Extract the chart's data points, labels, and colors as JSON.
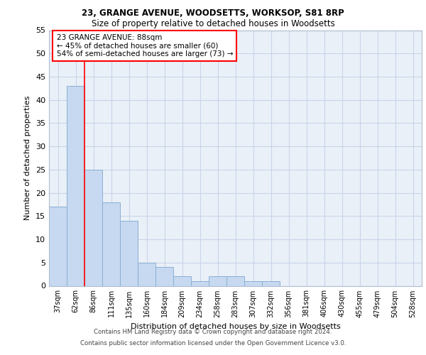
{
  "title1": "23, GRANGE AVENUE, WOODSETTS, WORKSOP, S81 8RP",
  "title2": "Size of property relative to detached houses in Woodsetts",
  "xlabel": "Distribution of detached houses by size in Woodsetts",
  "ylabel": "Number of detached properties",
  "bar_values": [
    17,
    43,
    25,
    18,
    14,
    5,
    4,
    2,
    1,
    2,
    2,
    1,
    1,
    0,
    0,
    0,
    0,
    0,
    0,
    0,
    0
  ],
  "categories": [
    "37sqm",
    "62sqm",
    "86sqm",
    "111sqm",
    "135sqm",
    "160sqm",
    "184sqm",
    "209sqm",
    "234sqm",
    "258sqm",
    "283sqm",
    "307sqm",
    "332sqm",
    "356sqm",
    "381sqm",
    "406sqm",
    "430sqm",
    "455sqm",
    "479sqm",
    "504sqm",
    "528sqm"
  ],
  "bar_color": "#c6d9f0",
  "bar_edge_color": "#8bafd4",
  "red_line_x": 2.0,
  "annotation_text": "23 GRANGE AVENUE: 88sqm\n← 45% of detached houses are smaller (60)\n54% of semi-detached houses are larger (73) →",
  "annotation_box_color": "white",
  "annotation_box_edge_color": "red",
  "ylim": [
    0,
    55
  ],
  "yticks": [
    0,
    5,
    10,
    15,
    20,
    25,
    30,
    35,
    40,
    45,
    50,
    55
  ],
  "footer1": "Contains HM Land Registry data © Crown copyright and database right 2024.",
  "footer2": "Contains public sector information licensed under the Open Government Licence v3.0.",
  "grid_color": "#c8d4e8",
  "background_color": "#eaf0f8"
}
